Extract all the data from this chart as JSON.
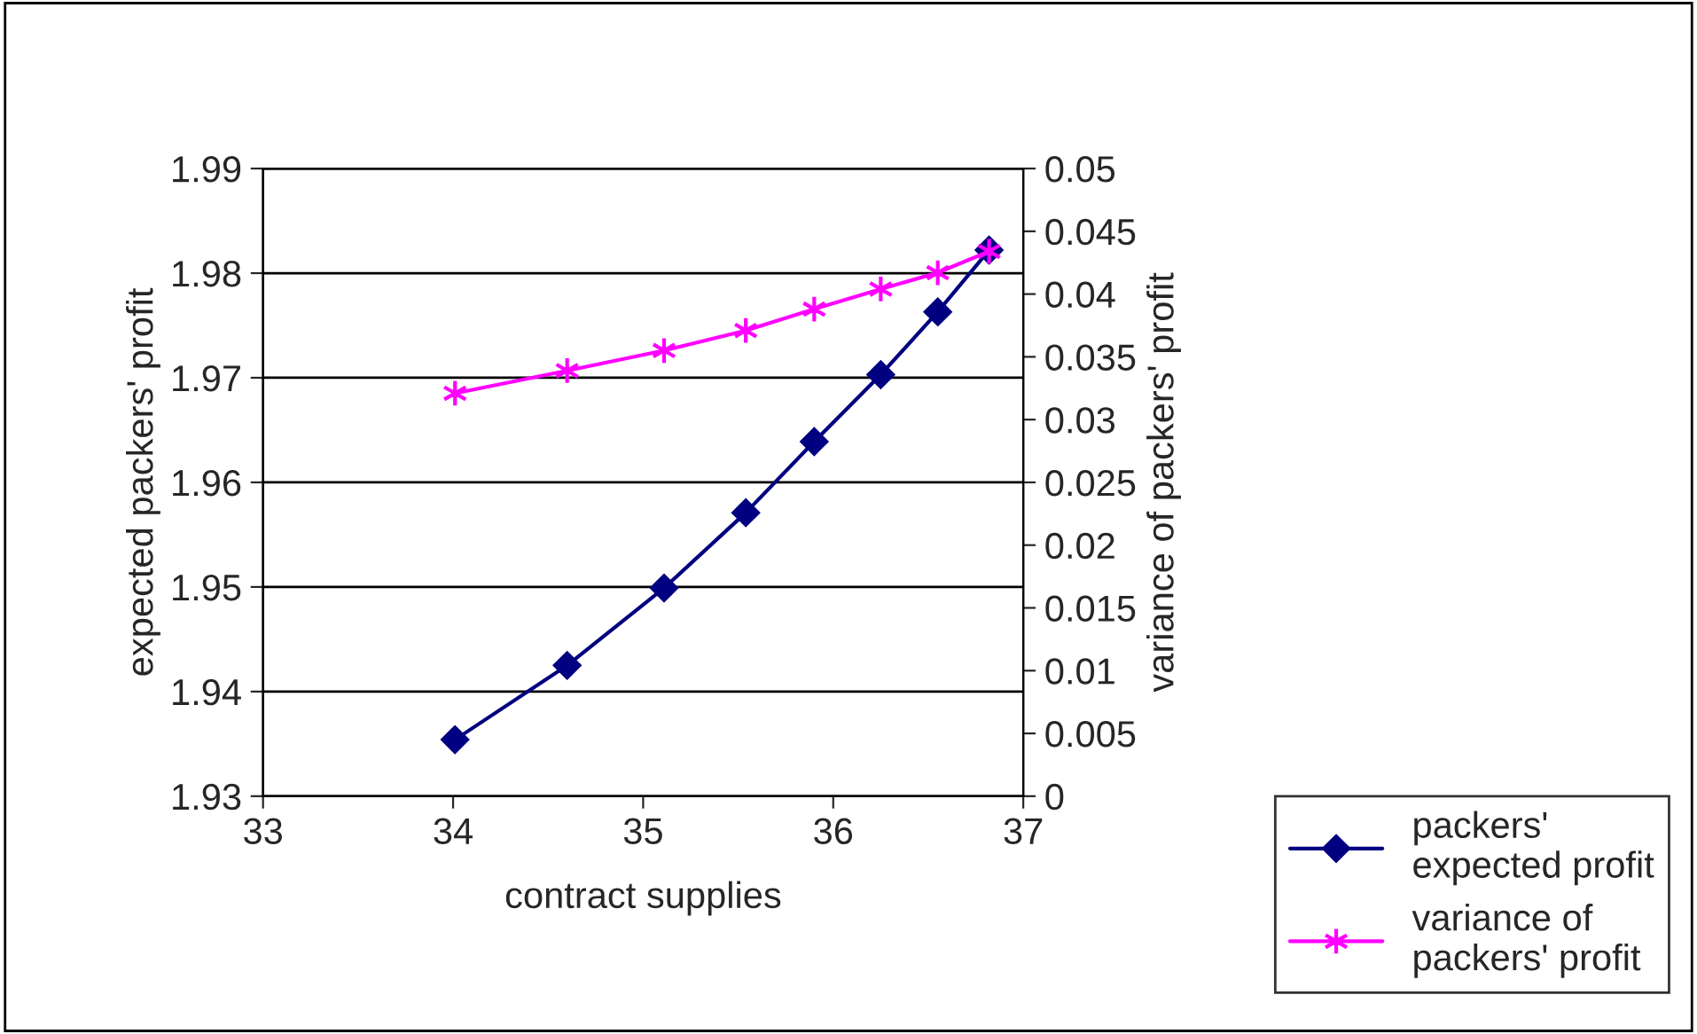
{
  "chart_data": {
    "type": "line",
    "xlabel": "contract supplies",
    "ylabel": "expected packers' profit",
    "y2label": "variance of packers' profit",
    "x": [
      34.01,
      34.6,
      35.11,
      35.54,
      35.9,
      36.25,
      36.55,
      36.82
    ],
    "series": [
      {
        "name": "packers'\nexpected profit",
        "color": "#000080",
        "marker": "diamond",
        "values": [
          1.9354,
          1.9425,
          1.9499,
          1.9571,
          1.9639,
          1.9703,
          1.9763,
          1.9822
        ]
      },
      {
        "name": "variance of\npackers' profit",
        "color": "#ff00ff",
        "marker": "cross",
        "axis": "y2",
        "values": [
          0.0321,
          0.0339,
          0.0355,
          0.0371,
          0.0388,
          0.0404,
          0.0417,
          0.0434
        ]
      }
    ],
    "xlim": [
      33,
      37
    ],
    "xticks": [
      33,
      34,
      35,
      36,
      37
    ],
    "ylim": [
      1.93,
      1.99
    ],
    "yticks": [
      1.93,
      1.94,
      1.95,
      1.96,
      1.97,
      1.98,
      1.99
    ],
    "y2lim": [
      0,
      0.05
    ],
    "y2ticks": [
      0,
      0.005,
      0.01,
      0.015,
      0.02,
      0.025,
      0.03,
      0.035,
      0.04,
      0.045,
      0.05
    ],
    "grid": "y",
    "legend": "bottom right"
  }
}
